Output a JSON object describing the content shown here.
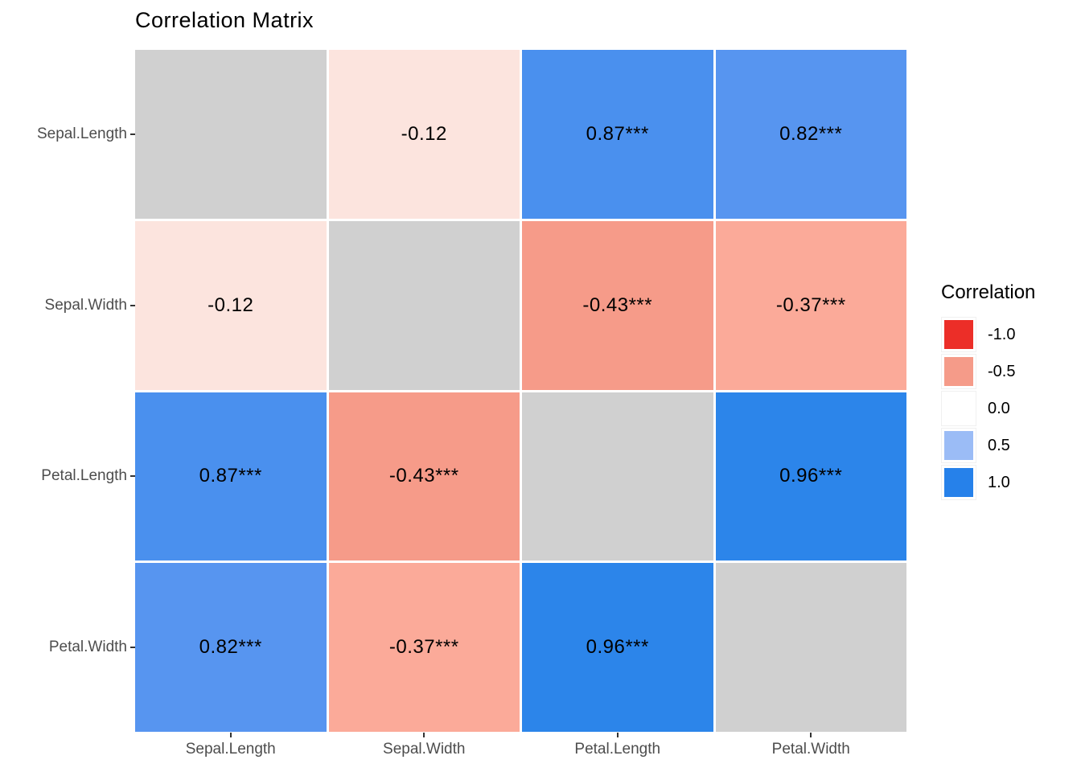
{
  "chart_data": {
    "type": "heatmap",
    "title": "Correlation Matrix",
    "x_categories": [
      "Sepal.Length",
      "Sepal.Width",
      "Petal.Length",
      "Petal.Width"
    ],
    "y_categories": [
      "Sepal.Length",
      "Sepal.Width",
      "Petal.Length",
      "Petal.Width"
    ],
    "matrix": [
      [
        {
          "label": "",
          "color": "#d0d0d0",
          "diagonal": true
        },
        {
          "value": -0.12,
          "label": "-0.12",
          "color": "#fce4de"
        },
        {
          "value": 0.87,
          "label": "0.87***",
          "color": "#4a90ee"
        },
        {
          "value": 0.82,
          "label": "0.82***",
          "color": "#5795f0"
        }
      ],
      [
        {
          "value": -0.12,
          "label": "-0.12",
          "color": "#fce4de"
        },
        {
          "label": "",
          "color": "#d0d0d0",
          "diagonal": true
        },
        {
          "value": -0.43,
          "label": "-0.43***",
          "color": "#f69b89"
        },
        {
          "value": -0.37,
          "label": "-0.37***",
          "color": "#fbaa99"
        }
      ],
      [
        {
          "value": 0.87,
          "label": "0.87***",
          "color": "#4a90ee"
        },
        {
          "value": -0.43,
          "label": "-0.43***",
          "color": "#f69b89"
        },
        {
          "label": "",
          "color": "#d0d0d0",
          "diagonal": true
        },
        {
          "value": 0.96,
          "label": "0.96***",
          "color": "#2c85ea"
        }
      ],
      [
        {
          "value": 0.82,
          "label": "0.82***",
          "color": "#5795f0"
        },
        {
          "value": -0.37,
          "label": "-0.37***",
          "color": "#fbaa99"
        },
        {
          "value": 0.96,
          "label": "0.96***",
          "color": "#2c85ea"
        },
        {
          "label": "",
          "color": "#d0d0d0",
          "diagonal": true
        }
      ]
    ],
    "legend": {
      "title": "Correlation",
      "position": "right",
      "entries": [
        {
          "label": "-1.0",
          "color": "#ec2e28"
        },
        {
          "label": "-0.5",
          "color": "#f59b89"
        },
        {
          "label": "0.0",
          "color": "#ffffff"
        },
        {
          "label": "0.5",
          "color": "#9bbcf6"
        },
        {
          "label": "1.0",
          "color": "#2681ea"
        }
      ]
    },
    "layout": {
      "grid": "off",
      "legend_side": "right",
      "diagonal_color": "#d0d0d0"
    }
  }
}
